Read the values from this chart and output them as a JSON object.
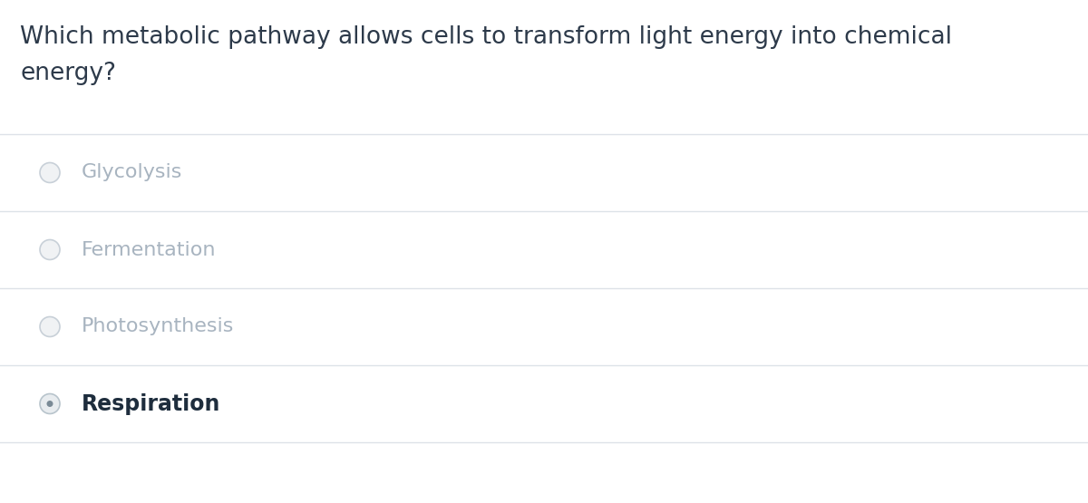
{
  "question_line1": "Which metabolic pathway allows cells to transform light energy into chemical",
  "question_line2": "energy?",
  "options": [
    "Glycolysis",
    "Fermentation",
    "Photosynthesis",
    "Respiration"
  ],
  "selected_index": 3,
  "background_color": "#ffffff",
  "question_color": "#2d3a4a",
  "option_color_unselected": "#a8b4c0",
  "option_color_selected": "#1e2d3d",
  "divider_color": "#dde2e8",
  "radio_border_unselected": "#c8d0d8",
  "radio_fill_unselected": "#f0f2f4",
  "radio_border_selected": "#b8c4cc",
  "radio_fill_selected": "#e8ecef",
  "radio_dot_selected": "#7a8a96",
  "question_fontsize": 19,
  "option_fontsize": 16,
  "option_fontsize_selected": 17
}
